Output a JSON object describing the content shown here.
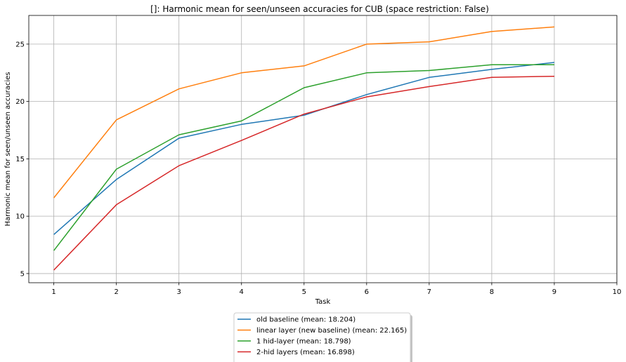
{
  "chart_data": {
    "type": "line",
    "title": "[]: Harmonic mean for seen/unseen accuracies for CUB (space restriction: False)",
    "xlabel": "Task",
    "ylabel": "Harmonic mean for seen/unseen accuracies",
    "x": [
      1,
      2,
      3,
      4,
      5,
      6,
      7,
      8,
      9
    ],
    "xlim": [
      0.6,
      10
    ],
    "ylim": [
      4.2,
      27.5
    ],
    "xticks": [
      1,
      2,
      3,
      4,
      5,
      6,
      7,
      8,
      9,
      10
    ],
    "yticks": [
      5,
      10,
      15,
      20,
      25
    ],
    "grid": true,
    "legend_position": "below",
    "series": [
      {
        "name": "old baseline (mean:  18.204)",
        "color": "#1f77b4",
        "values": [
          8.4,
          13.2,
          16.8,
          18.0,
          18.8,
          20.6,
          22.1,
          22.8,
          23.4
        ]
      },
      {
        "name": "linear layer (new baseline) (mean:  22.165)",
        "color": "#ff7f0e",
        "values": [
          11.6,
          18.4,
          21.1,
          22.5,
          23.1,
          25.0,
          25.2,
          26.1,
          26.5
        ]
      },
      {
        "name": "1 hid-layer (mean:  18.798)",
        "color": "#2ca02c",
        "values": [
          7.0,
          14.1,
          17.1,
          18.3,
          21.2,
          22.5,
          22.7,
          23.2,
          23.2
        ]
      },
      {
        "name": "2-hid layers (mean:  16.898)",
        "color": "#d62728",
        "values": [
          5.3,
          11.0,
          14.4,
          16.6,
          18.9,
          20.4,
          21.3,
          22.1,
          22.2
        ]
      }
    ]
  }
}
